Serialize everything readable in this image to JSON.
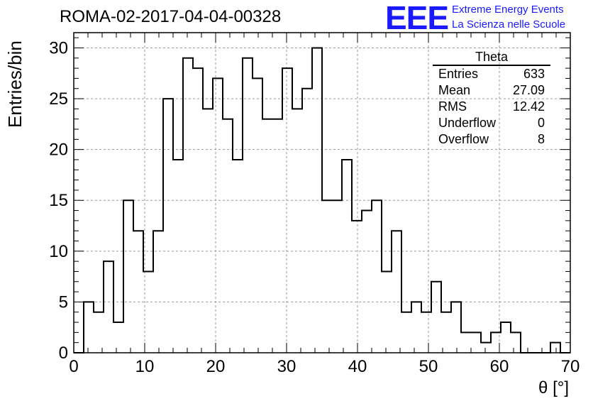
{
  "header": {
    "run_title": "ROMA-02-2017-04-04-00328",
    "logo_text": "EEE",
    "logo_line1": "Extreme Energy Events",
    "logo_line2": "La Scienza nelle Scuole"
  },
  "stats_box": {
    "title": "Theta",
    "rows": [
      {
        "label": "Entries",
        "value": "633"
      },
      {
        "label": "Mean",
        "value": "27.09"
      },
      {
        "label": "RMS",
        "value": "12.42"
      },
      {
        "label": "Underflow",
        "value": "0"
      },
      {
        "label": "Overflow",
        "value": "8"
      }
    ]
  },
  "chart_data": {
    "type": "bar",
    "subtype": "histogram-step",
    "title": "ROMA-02-2017-04-04-00328",
    "xlabel": "θ [°]",
    "ylabel": "Entries/bin",
    "xlim": [
      0,
      70
    ],
    "ylim": [
      0,
      31.5
    ],
    "bin_width": 1.4,
    "x_ticks": [
      0,
      10,
      20,
      30,
      40,
      50,
      60,
      70
    ],
    "y_ticks": [
      0,
      5,
      10,
      15,
      20,
      25,
      30
    ],
    "grid": true,
    "legend_position": "top-right",
    "line_color": "#000000",
    "values": [
      0,
      5,
      4,
      9,
      3,
      15,
      12,
      8,
      12,
      25,
      19,
      29,
      28,
      24,
      27,
      23,
      19,
      29,
      27,
      23,
      23,
      28,
      24,
      26,
      30,
      15,
      15,
      19,
      13,
      14,
      15,
      8,
      12,
      4,
      5,
      4,
      7,
      4,
      5,
      2,
      2,
      1,
      2,
      3,
      2,
      0,
      0,
      0,
      1,
      0
    ]
  }
}
